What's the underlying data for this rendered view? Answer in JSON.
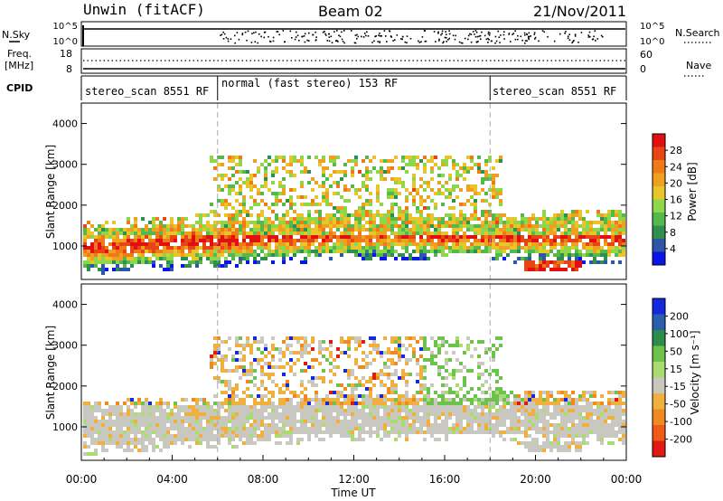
{
  "header": {
    "station": "Unwin (fitACF)",
    "beam": "Beam 02",
    "date": "21/Nov/2011"
  },
  "left_labels": {
    "nsky": "N.Sky",
    "freq_line1": "Freq.",
    "freq_line2": "[MHz]",
    "cpid": "CPID"
  },
  "right_labels": {
    "nsearch": "N.Search",
    "nave": "Nave"
  },
  "noise_panel": {
    "left_ticks": [
      "10^5",
      "10^0"
    ],
    "right_ticks": [
      "10^5",
      "10^0"
    ]
  },
  "freq_panel": {
    "left_ticks": [
      "18",
      "8"
    ],
    "right_ticks": [
      "60",
      "0"
    ]
  },
  "cpid_panel": {
    "segments": [
      {
        "label": "stereo_scan 8551 RF",
        "start_hour": 0,
        "end_hour": 6
      },
      {
        "label": "normal (fast stereo) 153 RF",
        "start_hour": 6,
        "end_hour": 18
      },
      {
        "label": "stereo_scan 8551 RF",
        "start_hour": 18,
        "end_hour": 24
      }
    ]
  },
  "chart_data": [
    {
      "type": "heatmap",
      "name": "power",
      "ylabel": "Slant Range [km]",
      "xlim": [
        0,
        24
      ],
      "ylim": [
        180,
        4500
      ],
      "yticks": [
        "1000",
        "2000",
        "3000",
        "4000"
      ],
      "colorbar": {
        "label": "Power [dB]",
        "ticks": [
          "4",
          "8",
          "12",
          "16",
          "20",
          "24",
          "28"
        ],
        "colors": [
          "#0a14e6",
          "#2f55a8",
          "#2e8f4e",
          "#55b84a",
          "#8ed64a",
          "#e8c52a",
          "#f0a020",
          "#f07a18",
          "#e84515",
          "#e01010"
        ]
      }
    },
    {
      "type": "heatmap",
      "name": "velocity",
      "ylabel": "Slant Range [km]",
      "xlabel": "Time UT",
      "xlim": [
        0,
        24
      ],
      "ylim": [
        180,
        4500
      ],
      "yticks": [
        "1000",
        "2000",
        "3000",
        "4000"
      ],
      "xticks": [
        "00:00",
        "04:00",
        "08:00",
        "12:00",
        "16:00",
        "20:00",
        "00:00"
      ],
      "colorbar": {
        "label": "Velocity [m s⁻¹]",
        "ticks": [
          "200",
          "100",
          "50",
          "15",
          "-15",
          "-50",
          "-100",
          "-200"
        ],
        "colors": [
          "#1428dc",
          "#2a5fb0",
          "#2e8c4a",
          "#6cc24a",
          "#a8dc70",
          "#c8c8c0",
          "#f0b040",
          "#f08a20",
          "#f05a18",
          "#e01a10"
        ]
      }
    }
  ]
}
